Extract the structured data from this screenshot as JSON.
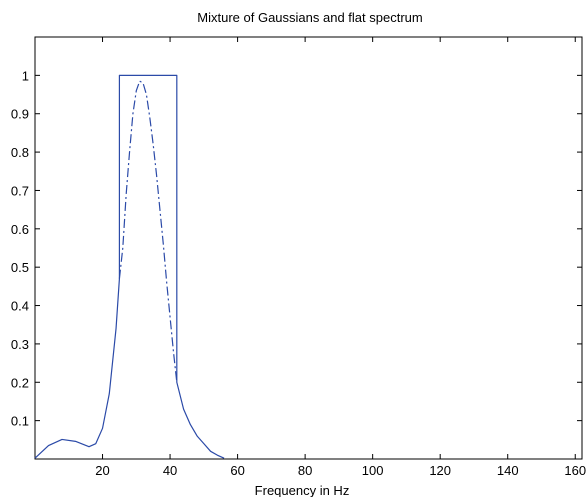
{
  "chart_data": {
    "type": "line",
    "title": "Mixture of Gaussians and flat spectrum",
    "xlabel": "Frequency in Hz",
    "ylabel": "",
    "xlim": [
      0,
      162
    ],
    "ylim": [
      0,
      1.1
    ],
    "xticks": [
      20,
      40,
      60,
      80,
      100,
      120,
      140,
      160
    ],
    "yticks": [
      0.1,
      0.2,
      0.3,
      0.4,
      0.5,
      0.6,
      0.7,
      0.8,
      0.9,
      1
    ],
    "grid": false,
    "colors": {
      "line": "#2b4aa8",
      "axis": "#000000",
      "background": "#ffffff"
    },
    "series": [
      {
        "style": "solid",
        "x": [
          0,
          4,
          8,
          12,
          16,
          18,
          20,
          22,
          24,
          25,
          25,
          42,
          42,
          42,
          44,
          46,
          48,
          50,
          52,
          54,
          56
        ],
        "y": [
          0.002,
          0.035,
          0.051,
          0.046,
          0.032,
          0.04,
          0.08,
          0.17,
          0.34,
          0.47,
          1.0,
          1.0,
          0.2,
          0.2,
          0.13,
          0.09,
          0.06,
          0.04,
          0.02,
          0.01,
          0.002
        ]
      },
      {
        "style": "dashdot",
        "x": [
          25,
          26,
          27,
          28,
          29,
          30,
          31,
          32,
          33,
          34,
          35,
          36,
          37,
          38,
          39,
          40,
          41,
          42
        ],
        "y": [
          0.47,
          0.55,
          0.69,
          0.8,
          0.9,
          0.96,
          0.985,
          0.98,
          0.95,
          0.89,
          0.82,
          0.74,
          0.65,
          0.56,
          0.46,
          0.37,
          0.28,
          0.2
        ]
      }
    ]
  }
}
